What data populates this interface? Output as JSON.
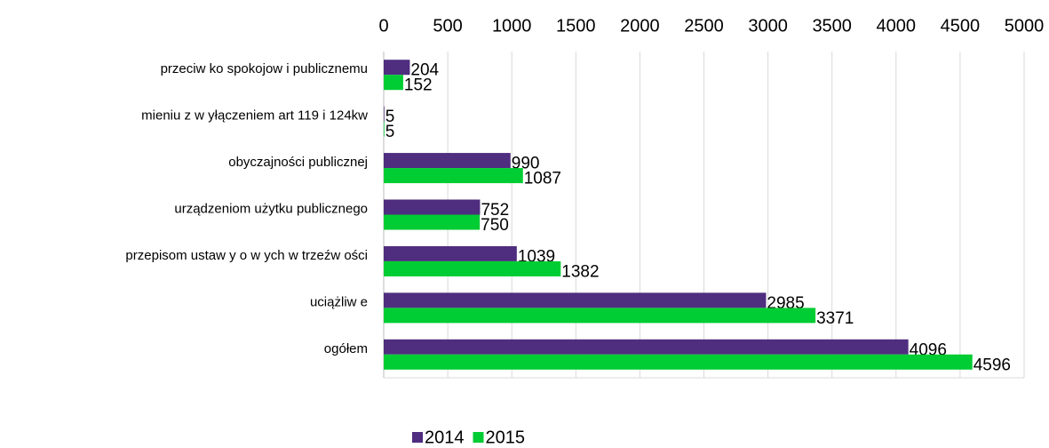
{
  "chart_data": {
    "type": "bar",
    "orientation": "horizontal",
    "categories": [
      "przeciw ko spokojow i publicznemu",
      "mieniu z w yłączeniem art 119 i 124kw",
      "obyczajności publicznej",
      "urządzeniom użytku publicznego",
      "przepisom ustaw y o w ych w  trzeźw ości",
      "uciążliw e",
      "ogółem"
    ],
    "series": [
      {
        "name": "2014",
        "color": "#4f2d7f",
        "values": [
          204,
          5,
          990,
          752,
          1039,
          2985,
          4096
        ]
      },
      {
        "name": "2015",
        "color": "#00cc33",
        "values": [
          152,
          5,
          1087,
          750,
          1382,
          3371,
          4596
        ]
      }
    ],
    "xlim": [
      0,
      5000
    ],
    "xticks": [
      0,
      500,
      1000,
      1500,
      2000,
      2500,
      3000,
      3500,
      4000,
      4500,
      5000
    ],
    "grid": true,
    "legend": "bottom"
  }
}
